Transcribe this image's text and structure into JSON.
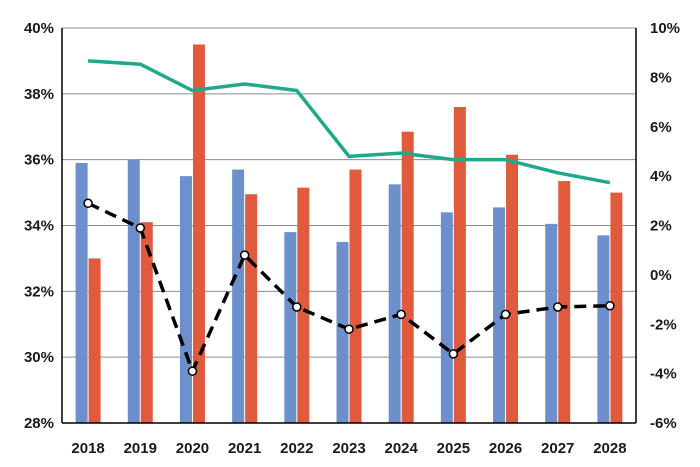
{
  "chart_data": {
    "type": "bar",
    "categories": [
      "2018",
      "2019",
      "2020",
      "2021",
      "2022",
      "2023",
      "2024",
      "2025",
      "2026",
      "2027",
      "2028"
    ],
    "title": "",
    "xlabel": "",
    "ylabel": "",
    "ylim": [
      28,
      40
    ],
    "y2lim": [
      -6,
      10
    ],
    "left_ticks": [
      "28%",
      "30%",
      "32%",
      "34%",
      "36%",
      "38%",
      "40%"
    ],
    "right_ticks": [
      "-6%",
      "-4%",
      "-2%",
      "0%",
      "2%",
      "4%",
      "6%",
      "8%",
      "10%"
    ],
    "grid": true,
    "legend": "none",
    "series": [
      {
        "type": "bar",
        "axis": "left",
        "color": "#6d90cc",
        "values": [
          35.9,
          36.0,
          35.5,
          35.7,
          33.8,
          33.5,
          35.25,
          34.4,
          34.55,
          34.05,
          33.7
        ]
      },
      {
        "type": "bar",
        "axis": "left",
        "color": "#e05a3e",
        "values": [
          33.0,
          34.1,
          39.5,
          34.95,
          35.15,
          35.7,
          36.85,
          37.6,
          36.15,
          35.35,
          35.0
        ]
      },
      {
        "type": "line",
        "axis": "left",
        "color": "#1fa88a",
        "style": "solid",
        "values": [
          39.0,
          38.9,
          38.1,
          38.3,
          38.1,
          36.1,
          36.2,
          36.0,
          36.0,
          35.6,
          35.3
        ]
      },
      {
        "type": "line",
        "axis": "right",
        "color": "#000000",
        "style": "dashed",
        "markers": true,
        "values": [
          2.9,
          1.9,
          -3.9,
          0.8,
          -1.3,
          -2.2,
          -1.6,
          -3.2,
          -1.6,
          -1.3,
          -1.25
        ]
      }
    ]
  }
}
